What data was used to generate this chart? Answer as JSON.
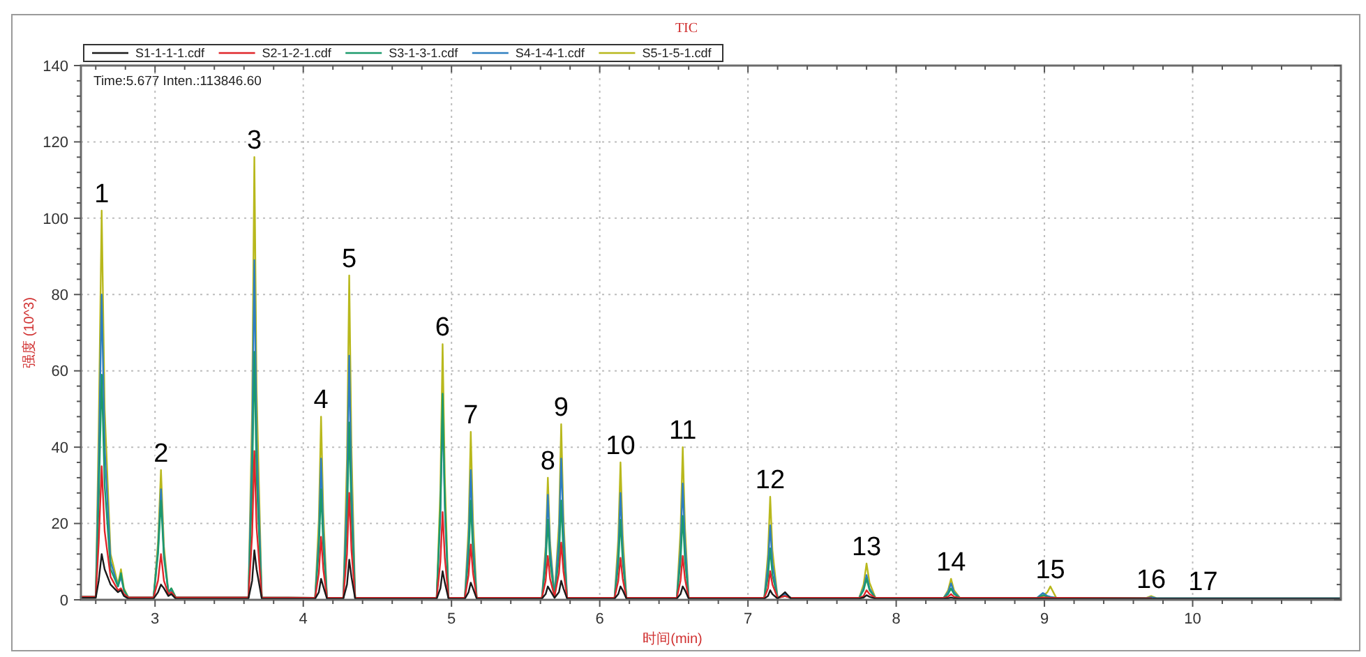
{
  "chart_data": {
    "type": "line",
    "title": "TIC",
    "xlabel": "时间(min)",
    "ylabel": "强度 (10^3)",
    "xlim": [
      2.5,
      11
    ],
    "ylim": [
      0,
      140
    ],
    "xticks": [
      {
        "value": 2.6,
        "label": null
      },
      {
        "value": 2.8,
        "label": null
      },
      3,
      {
        "value": 3.2,
        "label": null
      },
      {
        "value": 3.4,
        "label": null
      },
      {
        "value": 3.6,
        "label": null
      },
      {
        "value": 3.8,
        "label": null
      },
      4,
      {
        "value": 4.2,
        "label": null
      },
      {
        "value": 4.4,
        "label": null
      },
      {
        "value": 4.6,
        "label": null
      },
      {
        "value": 4.8,
        "label": null
      },
      5,
      {
        "value": 5.2,
        "label": null
      },
      {
        "value": 5.4,
        "label": null
      },
      {
        "value": 5.6,
        "label": null
      },
      {
        "value": 5.8,
        "label": null
      },
      6,
      {
        "value": 6.2,
        "label": null
      },
      {
        "value": 6.4,
        "label": null
      },
      {
        "value": 6.6,
        "label": null
      },
      {
        "value": 6.8,
        "label": null
      },
      7,
      {
        "value": 7.2,
        "label": null
      },
      {
        "value": 7.4,
        "label": null
      },
      {
        "value": 7.6,
        "label": null
      },
      {
        "value": 7.8,
        "label": null
      },
      8,
      {
        "value": 8.2,
        "label": null
      },
      {
        "value": 8.4,
        "label": null
      },
      {
        "value": 8.6,
        "label": null
      },
      {
        "value": 8.8,
        "label": null
      },
      9,
      {
        "value": 9.2,
        "label": null
      },
      {
        "value": 9.4,
        "label": null
      },
      {
        "value": 9.6,
        "label": null
      },
      {
        "value": 9.8,
        "label": null
      },
      10,
      {
        "value": 10.2,
        "label": null
      },
      {
        "value": 10.4,
        "label": null
      },
      {
        "value": 10.6,
        "label": null
      },
      {
        "value": 10.8,
        "label": null
      }
    ],
    "yticks": [
      0,
      {
        "value": 4,
        "label": null
      },
      {
        "value": 8,
        "label": null
      },
      {
        "value": 12,
        "label": null
      },
      {
        "value": 16,
        "label": null
      },
      20,
      {
        "value": 24,
        "label": null
      },
      {
        "value": 28,
        "label": null
      },
      {
        "value": 32,
        "label": null
      },
      {
        "value": 36,
        "label": null
      },
      40,
      {
        "value": 44,
        "label": null
      },
      {
        "value": 48,
        "label": null
      },
      {
        "value": 52,
        "label": null
      },
      {
        "value": 56,
        "label": null
      },
      60,
      {
        "value": 64,
        "label": null
      },
      {
        "value": 68,
        "label": null
      },
      {
        "value": 72,
        "label": null
      },
      {
        "value": 76,
        "label": null
      },
      80,
      {
        "value": 84,
        "label": null
      },
      {
        "value": 88,
        "label": null
      },
      {
        "value": 92,
        "label": null
      },
      {
        "value": 96,
        "label": null
      },
      100,
      {
        "value": 104,
        "label": null
      },
      {
        "value": 108,
        "label": null
      },
      {
        "value": 112,
        "label": null
      },
      {
        "value": 116,
        "label": null
      },
      120,
      {
        "value": 124,
        "label": null
      },
      {
        "value": 128,
        "label": null
      },
      {
        "value": 132,
        "label": null
      },
      {
        "value": 136,
        "label": null
      },
      140
    ],
    "grid": true,
    "legend": "top left",
    "x": [
      2.5,
      2.6,
      2.62,
      2.64,
      2.66,
      2.7,
      2.75,
      2.77,
      2.79,
      2.82,
      2.99,
      3.02,
      3.04,
      3.06,
      3.09,
      3.11,
      3.14,
      3.63,
      3.655,
      3.67,
      3.685,
      3.72,
      4.08,
      4.105,
      4.12,
      4.135,
      4.16,
      4.27,
      4.295,
      4.31,
      4.325,
      4.35,
      4.9,
      4.925,
      4.94,
      4.955,
      4.98,
      5.09,
      5.115,
      5.13,
      5.145,
      5.17,
      5.61,
      5.635,
      5.65,
      5.665,
      5.695,
      5.725,
      5.74,
      5.755,
      5.78,
      6.1,
      6.125,
      6.14,
      6.155,
      6.18,
      6.52,
      6.545,
      6.56,
      6.575,
      6.6,
      7.11,
      7.135,
      7.15,
      7.165,
      7.2,
      7.25,
      7.29,
      7.75,
      7.78,
      7.8,
      7.82,
      7.86,
      8.32,
      8.35,
      8.37,
      8.39,
      8.43,
      8.95,
      8.99,
      9.02,
      9.04,
      9.08,
      9.68,
      9.72,
      9.76,
      11
    ],
    "series": [
      {
        "name": "S1-1-1-1.cdf",
        "color": "#1a1a1a",
        "values": [
          0.5,
          0.5,
          5,
          12,
          8,
          4,
          2,
          2.5,
          1,
          0.3,
          0.3,
          2,
          4,
          3,
          1,
          1.5,
          0.3,
          0.3,
          5,
          13,
          8,
          0.3,
          0.3,
          2,
          5.5,
          3.5,
          0.3,
          0.3,
          4,
          10.5,
          6,
          0.3,
          0.3,
          3,
          7.5,
          4.5,
          0.3,
          0.3,
          2,
          4.5,
          3,
          0.3,
          0.3,
          1.5,
          3.5,
          2.5,
          0.5,
          2,
          5,
          3,
          0.3,
          0.3,
          1.5,
          3.5,
          2.5,
          0.3,
          0.3,
          1.5,
          3.5,
          2.5,
          0.3,
          0.3,
          1,
          2.5,
          1.5,
          0.3,
          2,
          0.3,
          0.3,
          0.6,
          1.2,
          0.8,
          0.3,
          0.3,
          0.4,
          0.6,
          0.4,
          0.3,
          0.3,
          0.3,
          0.3,
          0.3,
          0.3,
          0.3,
          0.3,
          0.3,
          0.3
        ]
      },
      {
        "name": "S2-1-2-1.cdf",
        "color": "#e0262a",
        "values": [
          0.8,
          0.8,
          15,
          35,
          18,
          6,
          2.5,
          3,
          1.5,
          0.6,
          0.6,
          5,
          12,
          5,
          1.5,
          2,
          0.6,
          0.6,
          17,
          39,
          19,
          0.6,
          0.5,
          7,
          16.5,
          8,
          0.5,
          0.5,
          12,
          28,
          13,
          0.5,
          0.5,
          10,
          23,
          11,
          0.5,
          0.5,
          6.5,
          14.5,
          7,
          0.5,
          0.5,
          5,
          11.5,
          5.5,
          0.8,
          7,
          15,
          7.5,
          0.5,
          0.5,
          5,
          11,
          5.5,
          0.5,
          0.5,
          5,
          11.5,
          5.5,
          0.5,
          0.5,
          3,
          7.5,
          4,
          0.5,
          1,
          0.5,
          0.5,
          1,
          2.5,
          1.5,
          0.5,
          0.5,
          0.8,
          1.5,
          0.8,
          0.5,
          0.5,
          0.6,
          0.6,
          0.5,
          0.5,
          0.4,
          0.4,
          null,
          null
        ]
      },
      {
        "name": "S3-1-3-1.cdf",
        "color": "#1c9a6c",
        "values": [
          0.8,
          0.8,
          26,
          59,
          30,
          8,
          3.5,
          7,
          2.5,
          0.6,
          0.6,
          12,
          26,
          11,
          2,
          3,
          0.6,
          0.6,
          30,
          65,
          32,
          0.6,
          0.5,
          13,
          29,
          14,
          0.5,
          0.5,
          20,
          46.5,
          22,
          0.5,
          0.5,
          24,
          54,
          26,
          0.5,
          0.5,
          11,
          26,
          12,
          0.5,
          0.5,
          9,
          21,
          10,
          1,
          11,
          26,
          12,
          0.5,
          0.5,
          9,
          21,
          10,
          0.5,
          0.5,
          10,
          22,
          10.5,
          0.5,
          0.5,
          6,
          13.5,
          6.5,
          0.5,
          1,
          0.5,
          0.5,
          2.5,
          5.5,
          2.5,
          0.5,
          0.5,
          1.5,
          3,
          1.5,
          0.5,
          0.5,
          1.2,
          0.8,
          0.6,
          0.5,
          0.4,
          null,
          null,
          null
        ]
      },
      {
        "name": "S4-1-4-1.cdf",
        "color": "#2e7fc0",
        "values": [
          0.8,
          0.8,
          35,
          80,
          40,
          10,
          3.5,
          6,
          2.5,
          0.6,
          0.6,
          13,
          29,
          12,
          2,
          2.5,
          0.6,
          0.6,
          40,
          89,
          42,
          0.6,
          0.5,
          16,
          37,
          18,
          0.5,
          0.5,
          28,
          64,
          30,
          0.5,
          0.5,
          22,
          50,
          24,
          0.5,
          0.5,
          15,
          34,
          16,
          0.5,
          0.5,
          12,
          27.5,
          13,
          1,
          16,
          37,
          18,
          0.5,
          0.5,
          12,
          28,
          13,
          0.5,
          0.5,
          13,
          30.5,
          15,
          0.5,
          0.5,
          9,
          19.5,
          9.5,
          0.5,
          1.5,
          0.5,
          0.5,
          3,
          6.5,
          3,
          0.5,
          0.5,
          2,
          4.3,
          2,
          0.5,
          0.5,
          1.8,
          1,
          0.8,
          0.5,
          0.4,
          0.7,
          0.4,
          0.4
        ]
      },
      {
        "name": "S5-1-5-1.cdf",
        "color": "#b8b81c",
        "values": [
          0.8,
          0.8,
          45,
          102,
          50,
          12,
          4,
          8,
          3,
          0.6,
          0.6,
          15,
          34,
          14,
          2,
          3,
          0.6,
          0.6,
          50,
          116,
          55,
          0.6,
          0.5,
          21,
          48,
          23,
          0.5,
          0.5,
          37,
          85,
          40,
          0.5,
          0.5,
          29,
          67,
          32,
          0.5,
          0.5,
          19,
          44,
          21,
          0.5,
          0.5,
          14,
          32,
          15,
          1,
          20,
          46,
          22,
          0.5,
          0.5,
          16,
          36,
          17,
          0.5,
          0.5,
          18,
          40,
          19,
          0.5,
          0.5,
          12,
          27,
          13,
          0.5,
          1.5,
          0.5,
          0.5,
          4,
          9.5,
          4.5,
          0.5,
          0.5,
          2.5,
          5.5,
          2.5,
          0.5,
          0.5,
          1,
          2,
          3.5,
          0.5,
          0.4,
          1,
          0.4,
          0.4
        ]
      }
    ],
    "annotations": [
      "Time:5.677  Inten.:113846.60",
      {
        "text": "1",
        "x": 2.64,
        "y": 102
      },
      {
        "text": "2",
        "x": 3.04,
        "y": 34
      },
      {
        "text": "3",
        "x": 3.67,
        "y": 116
      },
      {
        "text": "4",
        "x": 4.12,
        "y": 48
      },
      {
        "text": "5",
        "x": 4.31,
        "y": 85
      },
      {
        "text": "6",
        "x": 4.94,
        "y": 67
      },
      {
        "text": "7",
        "x": 5.13,
        "y": 44
      },
      {
        "text": "8",
        "x": 5.65,
        "y": 32
      },
      {
        "text": "9",
        "x": 5.74,
        "y": 46
      },
      {
        "text": "10",
        "x": 6.14,
        "y": 36
      },
      {
        "text": "11",
        "x": 6.56,
        "y": 40
      },
      {
        "text": "12",
        "x": 7.15,
        "y": 27
      },
      {
        "text": "13",
        "x": 7.8,
        "y": 9.5
      },
      {
        "text": "14",
        "x": 8.37,
        "y": 5.5
      },
      {
        "text": "15",
        "x": 9.04,
        "y": 3.5
      },
      {
        "text": "16",
        "x": 9.72,
        "y": 1
      },
      {
        "text": "17",
        "x": 10.07,
        "y": 0.4
      }
    ]
  }
}
